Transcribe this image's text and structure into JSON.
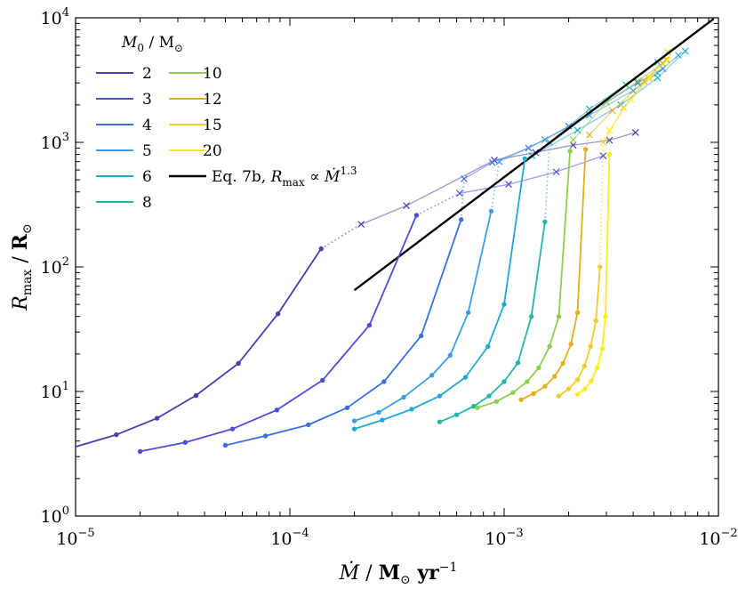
{
  "chart_data": {
    "type": "line",
    "xscale": "log",
    "yscale": "log",
    "xlim": [
      1e-05,
      0.01
    ],
    "ylim": [
      1,
      10000
    ],
    "xticks": [
      {
        "value": 1e-05,
        "base": "10",
        "exp": "−5"
      },
      {
        "value": 0.0001,
        "base": "10",
        "exp": "−4"
      },
      {
        "value": 0.001,
        "base": "10",
        "exp": "−3"
      },
      {
        "value": 0.01,
        "base": "10",
        "exp": "−2"
      }
    ],
    "yticks": [
      {
        "value": 1,
        "base": "10",
        "exp": "0"
      },
      {
        "value": 10,
        "base": "10",
        "exp": "1"
      },
      {
        "value": 100,
        "base": "10",
        "exp": "2"
      },
      {
        "value": 1000,
        "base": "10",
        "exp": "3"
      },
      {
        "value": 10000,
        "base": "10",
        "exp": "4"
      }
    ],
    "xlabel": {
      "var": "Ṁ",
      "sep": " / ",
      "unit": "M",
      "unit_sub": "⊙",
      "unit_rest": " yr",
      "unit_sup": "−1"
    },
    "ylabel": {
      "var": "R",
      "var_sub": "max",
      "sep": " / ",
      "unit": "R",
      "unit_sub": "⊙"
    },
    "legend": {
      "title": {
        "var": "M",
        "var_sub": "0",
        "sep": " / ",
        "unit": "M",
        "unit_sub": "⊙"
      },
      "location": "top-left"
    },
    "series": [
      {
        "name": "2",
        "color": "#4b3dab",
        "x": [
          1e-05,
          1.55e-05,
          2.4e-05,
          3.65e-05,
          5.75e-05,
          8.8e-05,
          0.00014
        ],
        "y": [
          3.6,
          4.5,
          6.1,
          9.3,
          16.8,
          42,
          140
        ],
        "markers": [
          1.55e-05,
          2.4e-05,
          3.65e-05,
          5.75e-05,
          8.8e-05,
          0.00014
        ],
        "markers_y": [
          4.5,
          6.1,
          9.3,
          16.8,
          42,
          140
        ],
        "ext_x": [
          0.000215,
          0.00035,
          0.0009,
          0.0014,
          0.0021,
          0.0031,
          0.0041
        ],
        "ext_y": [
          220,
          310,
          720,
          830,
          950,
          1040,
          1200
        ]
      },
      {
        "name": "3",
        "color": "#4b4ed8",
        "x": [
          2e-05,
          3.25e-05,
          5.4e-05,
          8.7e-05,
          0.000142,
          0.000235,
          0.00039
        ],
        "y": [
          3.3,
          3.9,
          5.0,
          7.1,
          12.3,
          34,
          260
        ],
        "markers": [
          2e-05,
          3.25e-05,
          5.4e-05,
          8.7e-05,
          0.000142,
          0.000235,
          0.00039
        ],
        "markers_y": [
          3.3,
          3.9,
          5.0,
          7.1,
          12.3,
          34,
          260
        ],
        "ext_x": [
          0.00062,
          0.00105,
          0.00175,
          0.0029
        ],
        "ext_y": [
          390,
          460,
          580,
          780
        ]
      },
      {
        "name": "4",
        "color": "#3a6fe0",
        "x": [
          5e-05,
          7.7e-05,
          0.000122,
          0.000185,
          0.000275,
          0.00041,
          0.00063
        ],
        "y": [
          3.7,
          4.4,
          5.4,
          7.4,
          12,
          28,
          240
        ],
        "markers": [
          5e-05,
          7.7e-05,
          0.000122,
          0.000185,
          0.000275,
          0.00041,
          0.00063
        ],
        "markers_y": [
          3.7,
          4.4,
          5.4,
          7.4,
          12,
          28,
          240
        ],
        "ext_x": [
          0.00065,
          0.00088,
          0.0013,
          0.002,
          0.003,
          0.0042,
          0.0055
        ],
        "ext_y": [
          510,
          690,
          900,
          1350,
          2100,
          3000,
          3900
        ]
      },
      {
        "name": "5",
        "color": "#3c9ee6",
        "x": [
          0.0002,
          0.00026,
          0.00034,
          0.00046,
          0.00056,
          0.00068,
          0.00087
        ],
        "y": [
          5.8,
          6.8,
          9.0,
          13.5,
          19.5,
          43,
          280
        ],
        "markers": [
          0.0002,
          0.00026,
          0.00034,
          0.00046,
          0.00056,
          0.00068,
          0.00087
        ],
        "markers_y": [
          5.8,
          6.8,
          9.0,
          13.5,
          19.5,
          43,
          280
        ],
        "ext_x": [
          0.00095,
          0.00155,
          0.0025,
          0.004,
          0.0052,
          0.0065
        ],
        "ext_y": [
          700,
          1050,
          1650,
          2600,
          3600,
          5000
        ]
      },
      {
        "name": "6",
        "color": "#1fa9d3",
        "x": [
          0.0002,
          0.00027,
          0.00037,
          0.0005,
          0.00066,
          0.00084,
          0.001,
          0.00125
        ],
        "y": [
          5.0,
          5.9,
          7.2,
          9.2,
          13,
          23,
          50,
          740
        ],
        "markers": [
          0.0002,
          0.00027,
          0.00037,
          0.0005,
          0.00066,
          0.00084,
          0.001,
          0.00125
        ],
        "markers_y": [
          5.0,
          5.9,
          7.2,
          9.2,
          13,
          23,
          50,
          740
        ],
        "ext_x": [
          0.00135,
          0.0022,
          0.0035,
          0.0052,
          0.007
        ],
        "ext_y": [
          780,
          1250,
          2000,
          3300,
          5400
        ]
      },
      {
        "name": "8",
        "color": "#23b6a8",
        "x": [
          0.0005,
          0.0006,
          0.00072,
          0.00085,
          0.001,
          0.00116,
          0.00134,
          0.00155
        ],
        "y": [
          5.7,
          6.5,
          7.6,
          9.2,
          12,
          17,
          40,
          230
        ],
        "markers": [
          0.0005,
          0.0006,
          0.00072,
          0.00085,
          0.001,
          0.00116,
          0.00134,
          0.00155
        ],
        "markers_y": [
          5.7,
          6.5,
          7.6,
          9.2,
          12,
          17,
          40,
          230
        ],
        "ext_x": [
          0.00163,
          0.0025,
          0.0037,
          0.0052
        ],
        "ext_y": [
          1000,
          1850,
          2900,
          4400
        ]
      },
      {
        "name": "10",
        "color": "#8ccf4f",
        "x": [
          0.00075,
          0.00092,
          0.0011,
          0.00128,
          0.00145,
          0.00163,
          0.0018,
          0.00203
        ],
        "y": [
          7.4,
          8.3,
          9.8,
          12,
          15.5,
          23,
          40,
          850
        ],
        "markers": [
          0.00075,
          0.00092,
          0.0011,
          0.00128,
          0.00145,
          0.00163,
          0.0018,
          0.00203
        ],
        "markers_y": [
          7.4,
          8.3,
          9.8,
          12,
          15.5,
          23,
          40,
          850
        ],
        "ext_x": [
          0.0021,
          0.003,
          0.0042,
          0.0055
        ],
        "ext_y": [
          1050,
          2100,
          3100,
          4300
        ]
      },
      {
        "name": "12",
        "color": "#e0b11f",
        "x": [
          0.0012,
          0.00137,
          0.00155,
          0.00172,
          0.00188,
          0.00205,
          0.0022,
          0.0024
        ],
        "y": [
          8.6,
          9.6,
          11,
          13.2,
          16.8,
          24,
          43,
          880
        ],
        "markers": [
          0.0012,
          0.00137,
          0.00155,
          0.00172,
          0.00188,
          0.00205,
          0.0022,
          0.0024
        ],
        "markers_y": [
          8.6,
          9.6,
          11,
          13.2,
          16.8,
          24,
          43,
          880
        ],
        "ext_x": [
          0.0025,
          0.0032,
          0.0045,
          0.0057
        ],
        "ext_y": [
          1150,
          1800,
          3100,
          4600
        ]
      },
      {
        "name": "15",
        "color": "#f1cc2a",
        "x": [
          0.0018,
          0.002,
          0.0022,
          0.00237,
          0.00253,
          0.00268,
          0.0028
        ],
        "y": [
          9.2,
          10.5,
          12.4,
          16,
          23,
          37,
          100
        ],
        "markers": [
          0.0018,
          0.002,
          0.0022,
          0.00237,
          0.00253,
          0.00268,
          0.0028
        ],
        "markers_y": [
          9.2,
          10.5,
          12.4,
          16,
          23,
          37,
          100
        ],
        "ext_x": [
          0.0029,
          0.0036,
          0.0047,
          0.0058
        ],
        "ext_y": [
          1000,
          1900,
          3300,
          5300
        ]
      },
      {
        "name": "20",
        "color": "#fbec1c",
        "x": [
          0.0022,
          0.00238,
          0.00255,
          0.00272,
          0.00287,
          0.00297,
          0.0031
        ],
        "y": [
          9.5,
          10.5,
          12.2,
          15.5,
          22,
          40,
          800
        ],
        "markers": [
          0.0022,
          0.00238,
          0.00255,
          0.00272,
          0.00287,
          0.00297,
          0.0031
        ],
        "markers_y": [
          9.5,
          10.5,
          12.2,
          15.5,
          22,
          40,
          800
        ],
        "ext_x": [
          0.0031,
          0.0039,
          0.0048,
          0.0058
        ],
        "ext_y": [
          1250,
          2200,
          3300,
          4600
        ]
      }
    ],
    "fit_line": {
      "label_text": "Eq. 7b, ",
      "label_var": "R",
      "label_var_sub": "max",
      "label_prop": " ∝ ",
      "label_mdot": "Ṁ",
      "label_exp": "1.3",
      "color": "#000000",
      "x": [
        0.0002,
        0.0095
      ],
      "y": [
        65,
        9800
      ]
    }
  }
}
